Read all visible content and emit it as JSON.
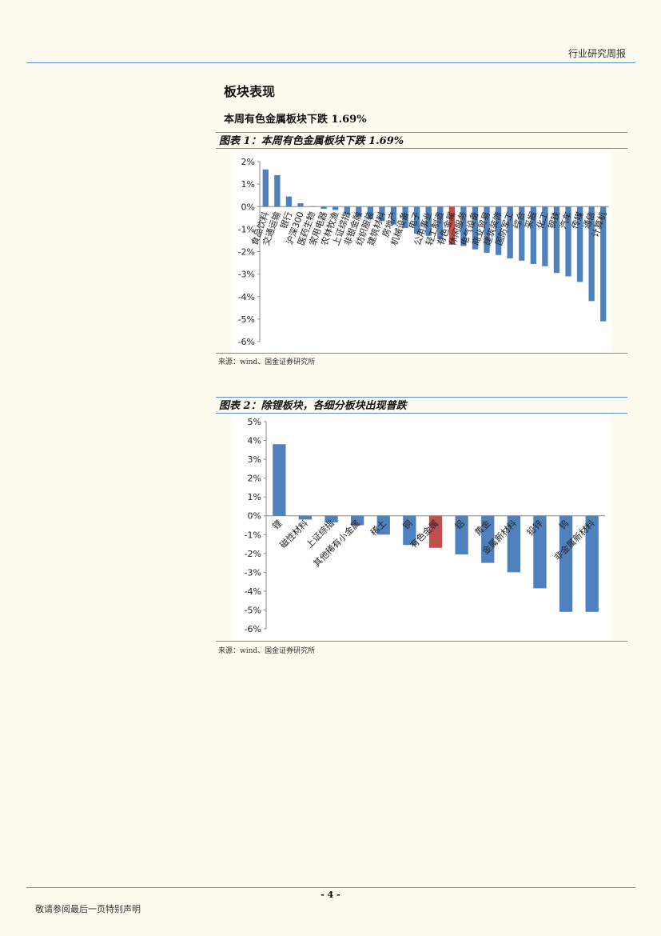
{
  "header": {
    "title": "行业研究周报"
  },
  "section": {
    "title": "板块表现",
    "subtitle": "本周有色金属板块下跌 1.69%"
  },
  "chart_data": [
    {
      "type": "bar",
      "title": "图表 1：本周有色金属板块下跌 1.69%",
      "source": "来源：wind、国金证券研究所",
      "categories": [
        "食品饮料",
        "交通运输",
        "银行",
        "沪深300",
        "医药生物",
        "家用电器",
        "农林牧渔",
        "上证综指",
        "非银金融",
        "纺织服装",
        "建筑材料",
        "房地产",
        "机械设备",
        "电子",
        "公用事业",
        "轻工制造",
        "有色金属",
        "休闲服务",
        "电气设备",
        "商业贸易",
        "建筑装饰",
        "国防军工",
        "综合",
        "采掘",
        "化工",
        "钢铁",
        "汽车",
        "传媒",
        "通信",
        "计算机"
      ],
      "values": [
        1.65,
        1.4,
        0.45,
        0.15,
        0.02,
        -0.1,
        -0.15,
        -0.35,
        -0.45,
        -0.55,
        -0.65,
        -0.8,
        -0.95,
        -1.2,
        -1.3,
        -1.45,
        -1.69,
        -1.75,
        -1.9,
        -2.05,
        -2.15,
        -2.3,
        -2.4,
        -2.55,
        -2.65,
        -2.95,
        -3.1,
        -3.35,
        -4.2,
        -5.1
      ],
      "colors": [
        "#4f81bd",
        "#4f81bd",
        "#4f81bd",
        "#4f81bd",
        "#4f81bd",
        "#4f81bd",
        "#4f81bd",
        "#4f81bd",
        "#4f81bd",
        "#4f81bd",
        "#4f81bd",
        "#4f81bd",
        "#4f81bd",
        "#4f81bd",
        "#4f81bd",
        "#4f81bd",
        "#c0504d",
        "#4f81bd",
        "#4f81bd",
        "#4f81bd",
        "#4f81bd",
        "#4f81bd",
        "#4f81bd",
        "#4f81bd",
        "#4f81bd",
        "#4f81bd",
        "#4f81bd",
        "#4f81bd",
        "#4f81bd",
        "#4f81bd"
      ],
      "ylim": [
        -6,
        2
      ],
      "yticks": [
        {
          "value": 2,
          "label": "2%"
        },
        {
          "value": 1,
          "label": "1%"
        },
        {
          "value": 0,
          "label": "0%"
        },
        {
          "value": -1,
          "label": "-1%"
        },
        {
          "value": -2,
          "label": "-2%"
        },
        {
          "value": -3,
          "label": "-3%"
        },
        {
          "value": -4,
          "label": "-4%"
        },
        {
          "value": -5,
          "label": "-5%"
        },
        {
          "value": -6,
          "label": "-6%"
        }
      ]
    },
    {
      "type": "bar",
      "title": "图表 2：除锂板块，各细分板块出现普跌",
      "source": "来源：wind、国金证券研究所",
      "categories": [
        "锂",
        "磁性材料",
        "上证综指",
        "其他稀有小金属",
        "稀土",
        "铜",
        "有色金属",
        "铝",
        "黄金",
        "金属新材料",
        "铅锌",
        "钨",
        "非金属新材料"
      ],
      "values": [
        3.8,
        -0.2,
        -0.35,
        -0.5,
        -1.0,
        -1.55,
        -1.7,
        -2.05,
        -2.5,
        -3.0,
        -3.85,
        -5.1,
        -5.1
      ],
      "colors": [
        "#4f81bd",
        "#4f81bd",
        "#4f81bd",
        "#4f81bd",
        "#4f81bd",
        "#4f81bd",
        "#c0504d",
        "#4f81bd",
        "#4f81bd",
        "#4f81bd",
        "#4f81bd",
        "#4f81bd",
        "#4f81bd"
      ],
      "ylim": [
        -6,
        5
      ],
      "yticks": [
        {
          "value": 5,
          "label": "5%"
        },
        {
          "value": 4,
          "label": "4%"
        },
        {
          "value": 3,
          "label": "3%"
        },
        {
          "value": 2,
          "label": "2%"
        },
        {
          "value": 1,
          "label": "1%"
        },
        {
          "value": 0,
          "label": "0%"
        },
        {
          "value": -1,
          "label": "-1%"
        },
        {
          "value": -2,
          "label": "-2%"
        },
        {
          "value": -3,
          "label": "-3%"
        },
        {
          "value": -4,
          "label": "-4%"
        },
        {
          "value": -5,
          "label": "-5%"
        },
        {
          "value": -6,
          "label": "-6%"
        }
      ]
    }
  ],
  "footer": {
    "page": "- 4 -",
    "note": "敬请参阅最后一页特别声明"
  }
}
